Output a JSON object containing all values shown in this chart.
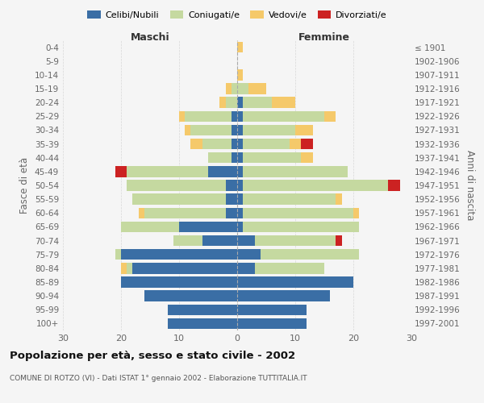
{
  "age_groups": [
    "100+",
    "95-99",
    "90-94",
    "85-89",
    "80-84",
    "75-79",
    "70-74",
    "65-69",
    "60-64",
    "55-59",
    "50-54",
    "45-49",
    "40-44",
    "35-39",
    "30-34",
    "25-29",
    "20-24",
    "15-19",
    "10-14",
    "5-9",
    "0-4"
  ],
  "birth_years": [
    "≤ 1901",
    "1902-1906",
    "1907-1911",
    "1912-1916",
    "1917-1921",
    "1922-1926",
    "1927-1931",
    "1932-1936",
    "1937-1941",
    "1942-1946",
    "1947-1951",
    "1952-1956",
    "1957-1961",
    "1962-1966",
    "1967-1971",
    "1972-1976",
    "1977-1981",
    "1982-1986",
    "1987-1991",
    "1992-1996",
    "1997-2001"
  ],
  "maschi": {
    "celibe": [
      0,
      0,
      0,
      0,
      0,
      1,
      1,
      1,
      1,
      5,
      2,
      2,
      2,
      10,
      6,
      20,
      18,
      20,
      16,
      12,
      12
    ],
    "coniugato": [
      0,
      0,
      0,
      1,
      2,
      8,
      7,
      5,
      4,
      14,
      17,
      16,
      14,
      10,
      5,
      1,
      1,
      0,
      0,
      0,
      0
    ],
    "vedovo": [
      0,
      0,
      0,
      1,
      1,
      1,
      1,
      2,
      0,
      0,
      0,
      0,
      1,
      0,
      0,
      0,
      1,
      0,
      0,
      0,
      0
    ],
    "divorziato": [
      0,
      0,
      0,
      0,
      0,
      0,
      0,
      0,
      0,
      2,
      0,
      0,
      0,
      0,
      0,
      0,
      0,
      0,
      0,
      0,
      0
    ]
  },
  "femmine": {
    "nubile": [
      0,
      0,
      0,
      0,
      1,
      1,
      1,
      1,
      1,
      1,
      1,
      1,
      1,
      1,
      3,
      4,
      3,
      20,
      16,
      12,
      12
    ],
    "coniugata": [
      0,
      0,
      0,
      2,
      5,
      14,
      9,
      8,
      10,
      18,
      25,
      16,
      19,
      20,
      14,
      17,
      12,
      0,
      0,
      0,
      0
    ],
    "vedova": [
      1,
      0,
      1,
      3,
      4,
      2,
      3,
      2,
      2,
      0,
      0,
      1,
      1,
      0,
      0,
      0,
      0,
      0,
      0,
      0,
      0
    ],
    "divorziata": [
      0,
      0,
      0,
      0,
      0,
      0,
      0,
      2,
      0,
      0,
      2,
      0,
      0,
      0,
      1,
      0,
      0,
      0,
      0,
      0,
      0
    ]
  },
  "colors": {
    "celibe": "#3a6ea5",
    "coniugato": "#c5d9a0",
    "vedovo": "#f5c96a",
    "divorziato": "#cc2222"
  },
  "title": "Popolazione per età, sesso e stato civile - 2002",
  "subtitle": "COMUNE DI ROTZO (VI) - Dati ISTAT 1° gennaio 2002 - Elaborazione TUTTITALIA.IT",
  "xlabel_left": "Maschi",
  "xlabel_right": "Femmine",
  "ylabel_left": "Fasce di età",
  "ylabel_right": "Anni di nascita",
  "xlim": 30,
  "background_color": "#f5f5f5",
  "grid_color": "#cccccc"
}
